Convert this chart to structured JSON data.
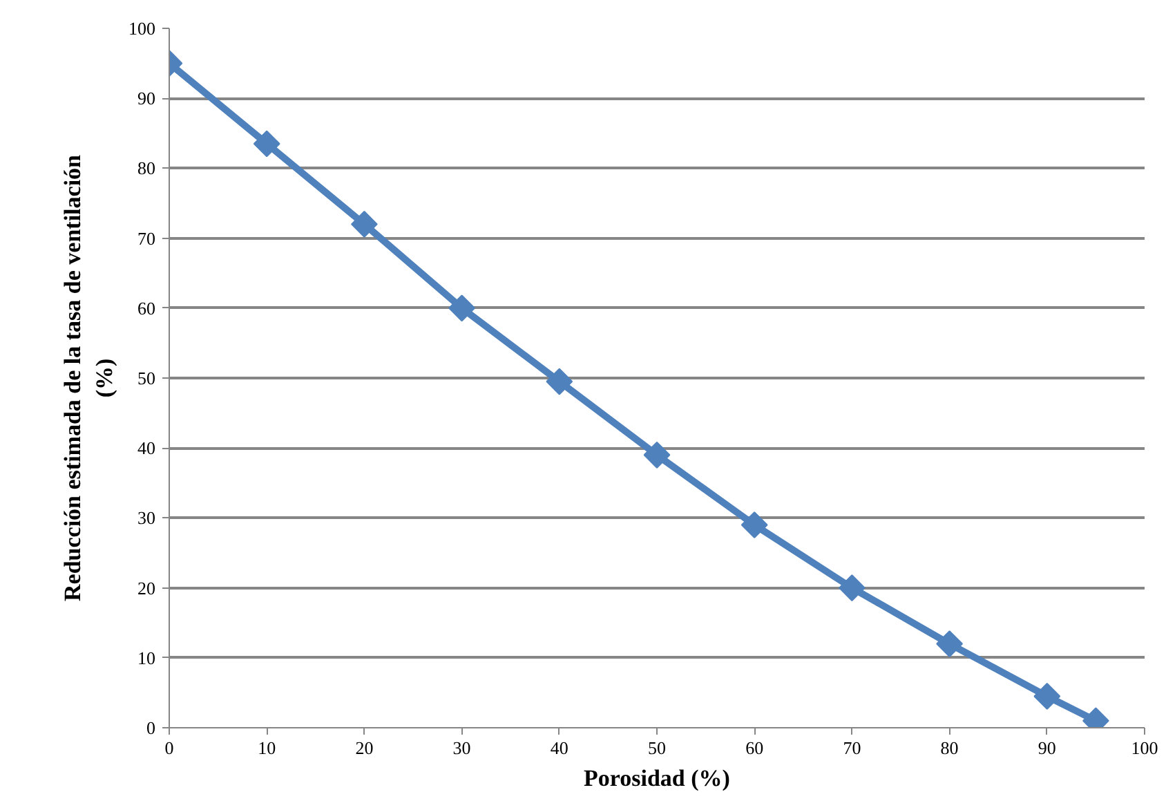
{
  "chart_data": {
    "type": "line",
    "xlabel": "Porosidad (%)",
    "ylabel": "Reducción estimada de la tasa de ventilación\n(%)",
    "x": [
      0,
      10,
      20,
      30,
      40,
      50,
      60,
      70,
      80,
      90,
      95
    ],
    "series": [
      {
        "color": "#4f81bd",
        "values": [
          95,
          83.5,
          72,
          60,
          49.5,
          39,
          29,
          20,
          12,
          4.5,
          1
        ]
      }
    ],
    "xlim": [
      0,
      100
    ],
    "xticks": [
      0,
      10,
      20,
      30,
      40,
      50,
      60,
      70,
      80,
      90,
      100
    ],
    "ylim": [
      0,
      100
    ],
    "yticks": [
      0,
      10,
      20,
      30,
      40,
      50,
      60,
      70,
      80,
      90,
      100
    ],
    "grid": "y",
    "marker": "diamond",
    "line_style": "solid"
  }
}
